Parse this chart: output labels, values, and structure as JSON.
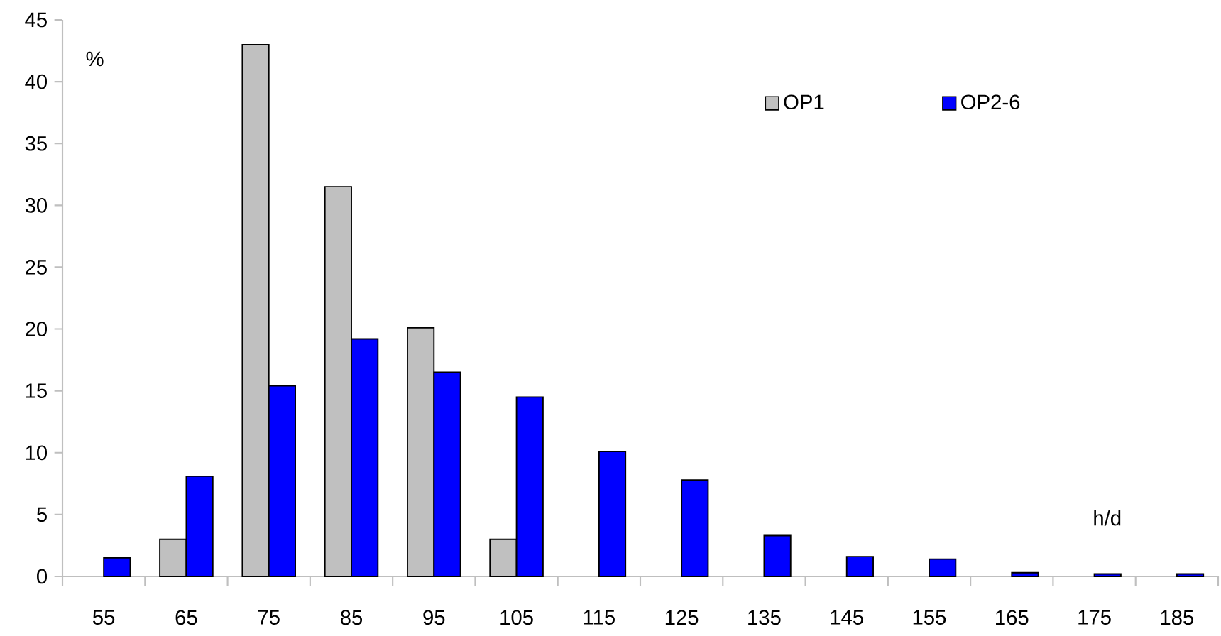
{
  "chart_data": {
    "type": "bar",
    "xlabel": "h/d",
    "ylabel": "%",
    "categories": [
      "55",
      "65",
      "75",
      "85",
      "95",
      "105",
      "115",
      "125",
      "135",
      "145",
      "155",
      "165",
      "175",
      "185"
    ],
    "series": [
      {
        "name": "OP1",
        "color": "#c0c0c0",
        "values": [
          null,
          3.0,
          43.0,
          31.5,
          20.1,
          3.0,
          null,
          null,
          null,
          null,
          null,
          null,
          null,
          null
        ]
      },
      {
        "name": "OP2-6",
        "color": "#0000ff",
        "values": [
          1.5,
          8.1,
          15.4,
          19.2,
          16.5,
          14.5,
          10.1,
          7.8,
          3.3,
          1.6,
          1.4,
          0.3,
          0.2,
          0.2
        ]
      }
    ],
    "ylim": [
      0,
      45
    ],
    "yticks": [
      0,
      5,
      10,
      15,
      20,
      25,
      30,
      35,
      40,
      45
    ],
    "legend": "top right"
  }
}
